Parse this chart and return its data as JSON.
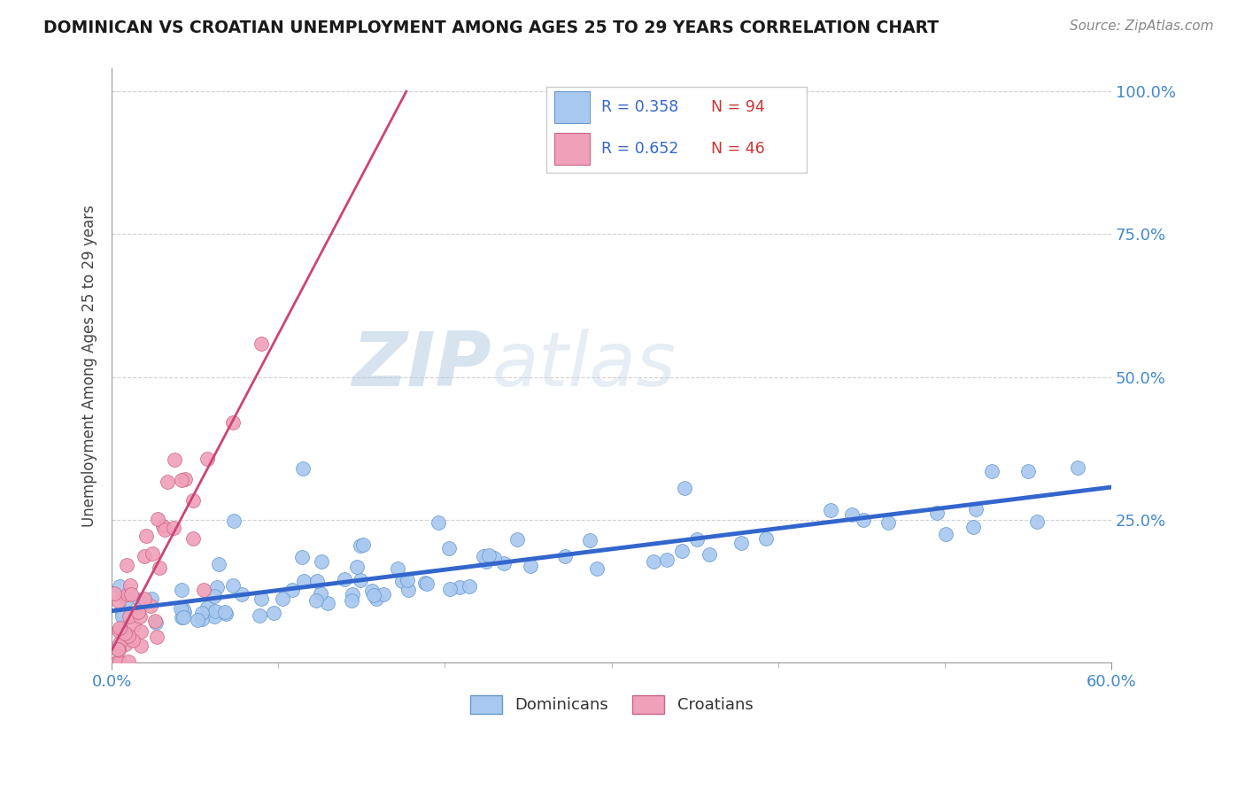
{
  "title": "DOMINICAN VS CROATIAN UNEMPLOYMENT AMONG AGES 25 TO 29 YEARS CORRELATION CHART",
  "source": "Source: ZipAtlas.com",
  "ylabel_label": "Unemployment Among Ages 25 to 29 years",
  "legend_label1": "Dominicans",
  "legend_label2": "Croatians",
  "legend_R1": "R = 0.358",
  "legend_N1": "N = 94",
  "legend_R2": "R = 0.652",
  "legend_N2": "N = 46",
  "blue_color": "#a8c8f0",
  "blue_edge_color": "#6699cc",
  "pink_color": "#f0a0b8",
  "pink_edge_color": "#cc6688",
  "blue_line_color": "#3366cc",
  "pink_line_color": "#cc4477",
  "xmin": 0.0,
  "xmax": 0.6,
  "ymin": 0.0,
  "ymax": 1.04,
  "yticks": [
    0.0,
    0.25,
    0.5,
    0.75,
    1.0
  ],
  "ytick_labels": [
    "",
    "25.0%",
    "50.0%",
    "75.0%",
    "100.0%"
  ],
  "background_color": "#ffffff",
  "grid_color": "#cccccc",
  "watermark_color": "#d8e8f5",
  "title_color": "#1a1a1a",
  "source_color": "#888888",
  "tick_label_color": "#4488cc",
  "legend_text_color_R": "#3366cc",
  "legend_text_color_N": "#cc3333"
}
